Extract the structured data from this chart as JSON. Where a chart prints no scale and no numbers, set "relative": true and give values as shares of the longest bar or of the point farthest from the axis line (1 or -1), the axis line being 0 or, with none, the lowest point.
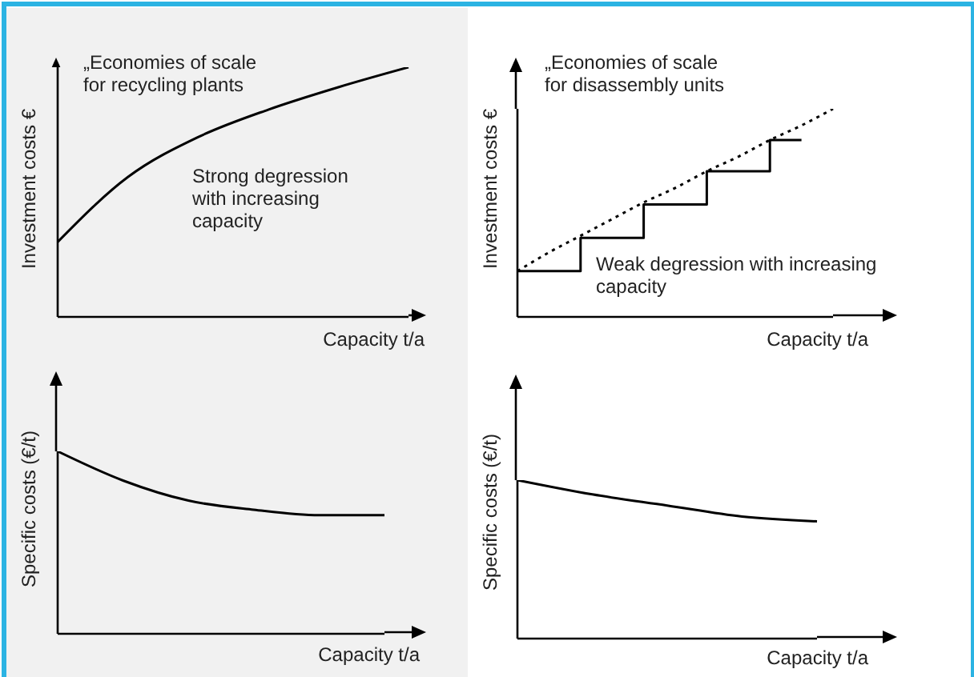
{
  "chart_data": [
    {
      "type": "line",
      "relative": true,
      "ylabel": "Investment costs €",
      "xlabel": "Capacity t/a",
      "annotations": [
        "„Economies of scale\nfor recycling plants",
        "Strong degression\nwith increasing\ncapacity"
      ],
      "categories": [
        null,
        null,
        null,
        null,
        null,
        null
      ],
      "series": [
        {
          "color": "#000000",
          "values": [
            0.3,
            0.56,
            0.72,
            0.83,
            0.92,
            1.0
          ]
        }
      ]
    },
    {
      "type": "line",
      "relative": true,
      "ylabel": "Investment costs €",
      "xlabel": "Capacity t/a",
      "annotations": [
        "„Economies of scale\nfor disassembly units",
        "Weak degression with increasing\ncapacity"
      ],
      "categories": [
        null,
        null,
        null,
        null,
        null,
        null,
        null,
        null,
        null,
        null,
        null
      ],
      "series": [
        {
          "color": "#000000",
          "line_style": "dotted",
          "values": [
            0.22,
            0.31,
            0.39,
            0.47,
            0.55,
            0.62,
            0.7,
            0.77,
            0.85,
            0.92,
            1.0
          ]
        },
        {
          "type": "step",
          "color": "#000000",
          "values": [
            0.22,
            0.22,
            0.38,
            0.38,
            0.54,
            0.54,
            0.7,
            0.7,
            0.85,
            0.85,
            null
          ]
        }
      ]
    },
    {
      "type": "line",
      "relative": true,
      "ylabel": "Specific costs (€/t)",
      "xlabel": "Capacity t/a",
      "categories": [
        null,
        null,
        null,
        null,
        null,
        null
      ],
      "series": [
        {
          "color": "#000000",
          "values": [
            1.0,
            0.84,
            0.73,
            0.68,
            0.65,
            0.65
          ]
        }
      ]
    },
    {
      "type": "line",
      "relative": true,
      "ylabel": "Specific costs (€/t)",
      "xlabel": "Capacity t/a",
      "categories": [
        null,
        null,
        null,
        null,
        null
      ],
      "series": [
        {
          "color": "#000000",
          "values": [
            1.0,
            0.91,
            0.84,
            0.77,
            0.74
          ]
        }
      ]
    }
  ]
}
